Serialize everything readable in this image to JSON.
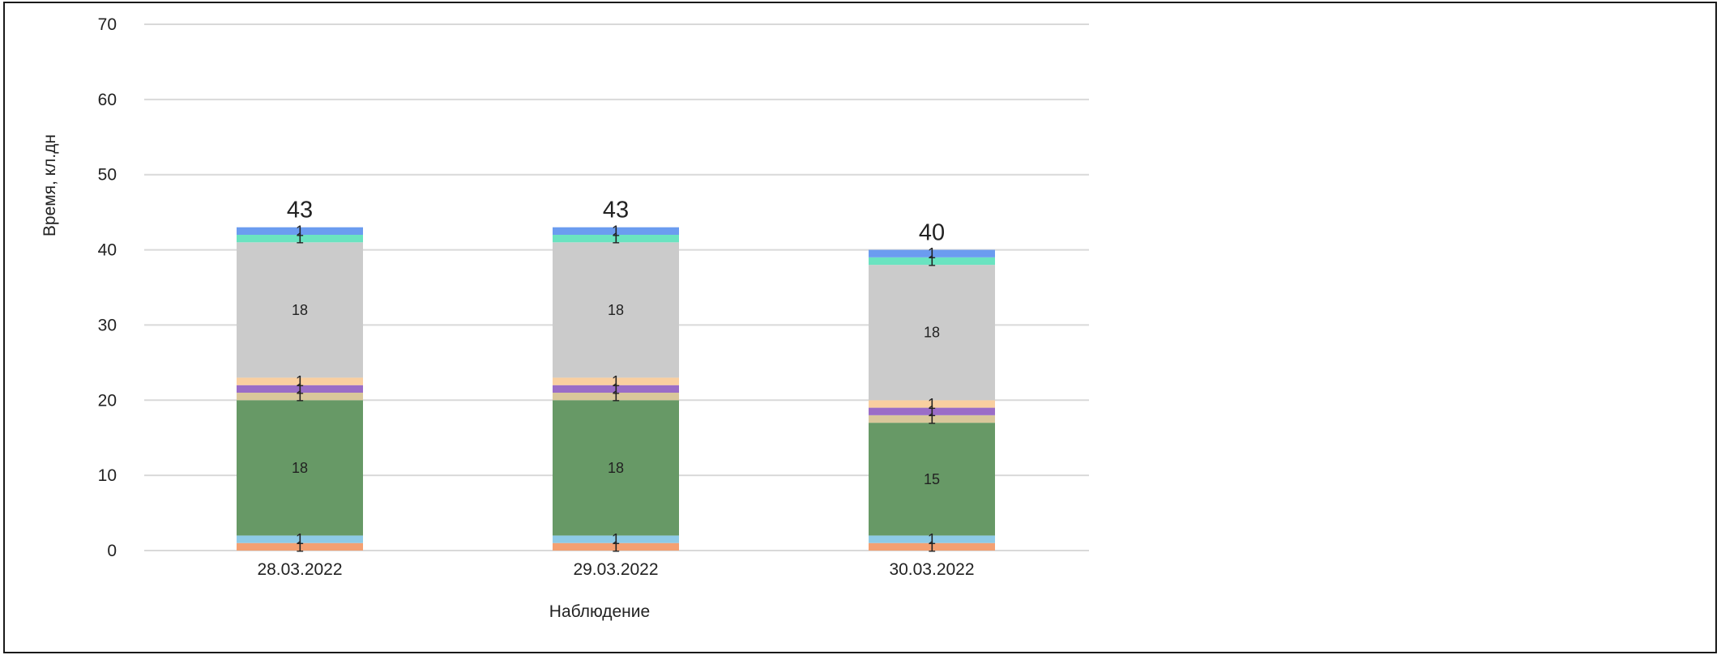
{
  "chart_data": {
    "type": "bar",
    "stacked": true,
    "categories": [
      "28.03.2022",
      "29.03.2022",
      "30.03.2022"
    ],
    "xlabel": "Наблюдение",
    "ylabel": "Время, кл.дн",
    "ylim": [
      0,
      70
    ],
    "yticks": [
      0,
      10,
      20,
      30,
      40,
      50,
      60,
      70
    ],
    "grid": true,
    "legend": "none",
    "series": [
      {
        "color": "#f4a072",
        "values": [
          1,
          1,
          1
        ]
      },
      {
        "color": "#8ecae6",
        "values": [
          1,
          1,
          1
        ]
      },
      {
        "color": "#679966",
        "values": [
          18,
          18,
          15
        ]
      },
      {
        "color": "#d9c79b",
        "values": [
          1,
          1,
          1
        ]
      },
      {
        "color": "#9a6dc7",
        "values": [
          1,
          1,
          1
        ]
      },
      {
        "color": "#f9cfa0",
        "values": [
          1,
          1,
          1
        ]
      },
      {
        "color": "#cbcbcb",
        "values": [
          18,
          18,
          18
        ]
      },
      {
        "color": "#6ae3c0",
        "values": [
          1,
          1,
          1
        ]
      },
      {
        "color": "#6b9cf0",
        "values": [
          1,
          1,
          1
        ]
      }
    ],
    "totals": [
      43,
      43,
      40
    ]
  }
}
